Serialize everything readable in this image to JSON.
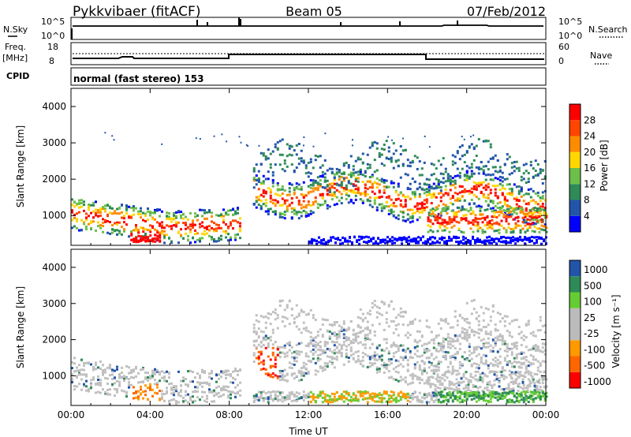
{
  "header": {
    "station": "Pykkvibaer (fitACF)",
    "beam": "Beam 05",
    "date": "07/Feb/2012"
  },
  "noise_panel": {
    "left_label": "N.Sky",
    "right_label": "N.Search",
    "left_ticks": [
      "10^5",
      "10^0"
    ],
    "right_ticks": [
      "10^5",
      "10^0"
    ]
  },
  "freq_panel": {
    "left_label": "Freq.",
    "left_unit": "[MHz]",
    "right_label": "Nave",
    "left_ticks": [
      "18",
      "8"
    ],
    "right_ticks": [
      "60",
      "0"
    ]
  },
  "cpid": {
    "label": "CPID",
    "text": "normal (fast stereo) 153"
  },
  "colors": {
    "power": [
      "#0000ff",
      "#2255aa",
      "#2e8b57",
      "#6cc04a",
      "#ffd700",
      "#ff8c00",
      "#ff4500",
      "#ff0000"
    ],
    "velocity": [
      "#ff0000",
      "#ff6600",
      "#ff9900",
      "#bbbbbb",
      "#bbbbbb",
      "#66cc33",
      "#2e8b57",
      "#2255aa"
    ],
    "ground_scatter": "#c0c0c0"
  },
  "chart_data": [
    {
      "type": "heatmap",
      "panel": "power",
      "ylabel": "Slant Range [km]",
      "ylim": [
        180,
        4500
      ],
      "yticks": [
        "1000",
        "2000",
        "3000",
        "4000"
      ],
      "xticks": [
        "00:00",
        "04:00",
        "08:00",
        "12:00",
        "16:00",
        "20:00",
        "00:00"
      ],
      "colorbar_label": "Power [dB]",
      "colorbar_ticks": [
        "4",
        "8",
        "12",
        "16",
        "20",
        "24",
        "28"
      ]
    },
    {
      "type": "heatmap",
      "panel": "velocity",
      "ylabel": "Slant Range [km]",
      "ylim": [
        180,
        4500
      ],
      "yticks": [
        "1000",
        "2000",
        "3000",
        "4000"
      ],
      "xticks": [
        "00:00",
        "04:00",
        "08:00",
        "12:00",
        "16:00",
        "20:00",
        "00:00"
      ],
      "xlabel": "Time UT",
      "colorbar_label": "Velocity [m s⁻¹]",
      "colorbar_ticks": [
        "1000",
        "500",
        "100",
        "25",
        "-25",
        "-100",
        "-500",
        "-1000"
      ]
    }
  ]
}
